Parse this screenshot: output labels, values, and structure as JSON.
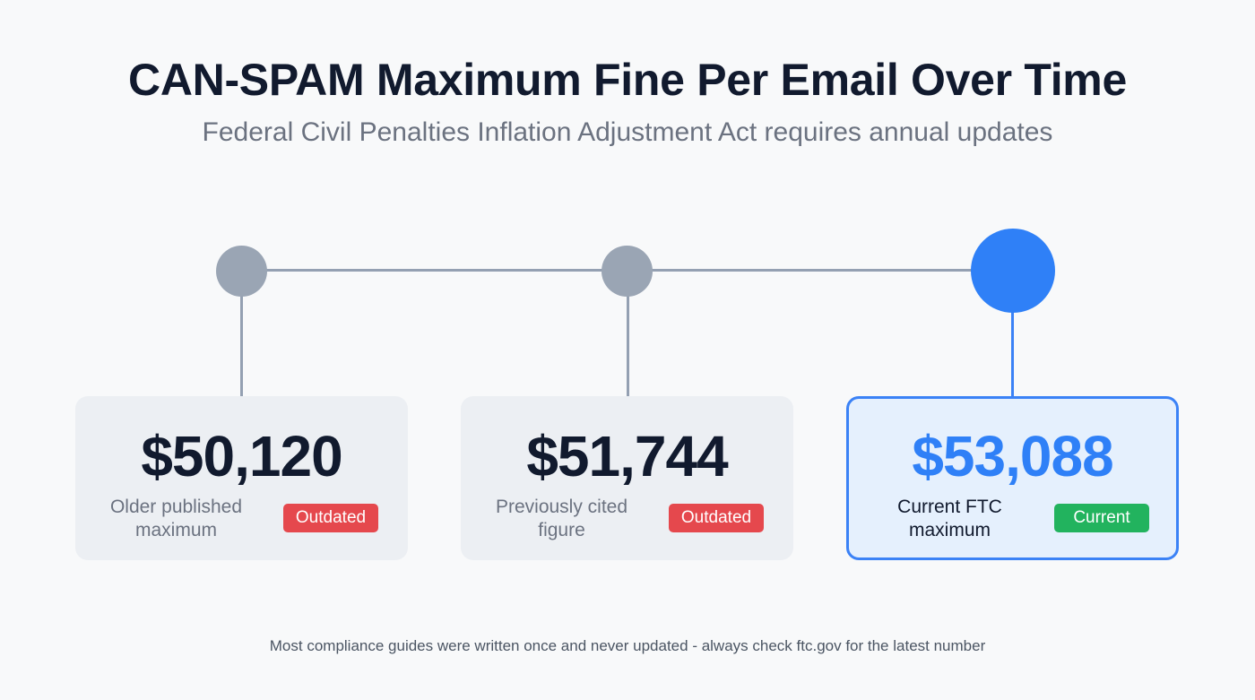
{
  "title": "CAN-SPAM Maximum Fine Per Email Over Time",
  "subtitle": "Federal Civil Penalties Inflation Adjustment Act requires annual updates",
  "colors": {
    "outdated": "#e5484d",
    "current": "#22b35e",
    "accent": "#2f80f7",
    "inactive_node": "#9aa5b4"
  },
  "milestones": [
    {
      "amount": "$50,120",
      "description": "Older published maximum",
      "badge": "Outdated",
      "status": "outdated"
    },
    {
      "amount": "$51,744",
      "description": "Previously cited figure",
      "badge": "Outdated",
      "status": "outdated"
    },
    {
      "amount": "$53,088",
      "description": "Current FTC maximum",
      "badge": "Current",
      "status": "current"
    }
  ],
  "footer": "Most compliance guides were written once and never updated - always check ftc.gov for the latest number"
}
